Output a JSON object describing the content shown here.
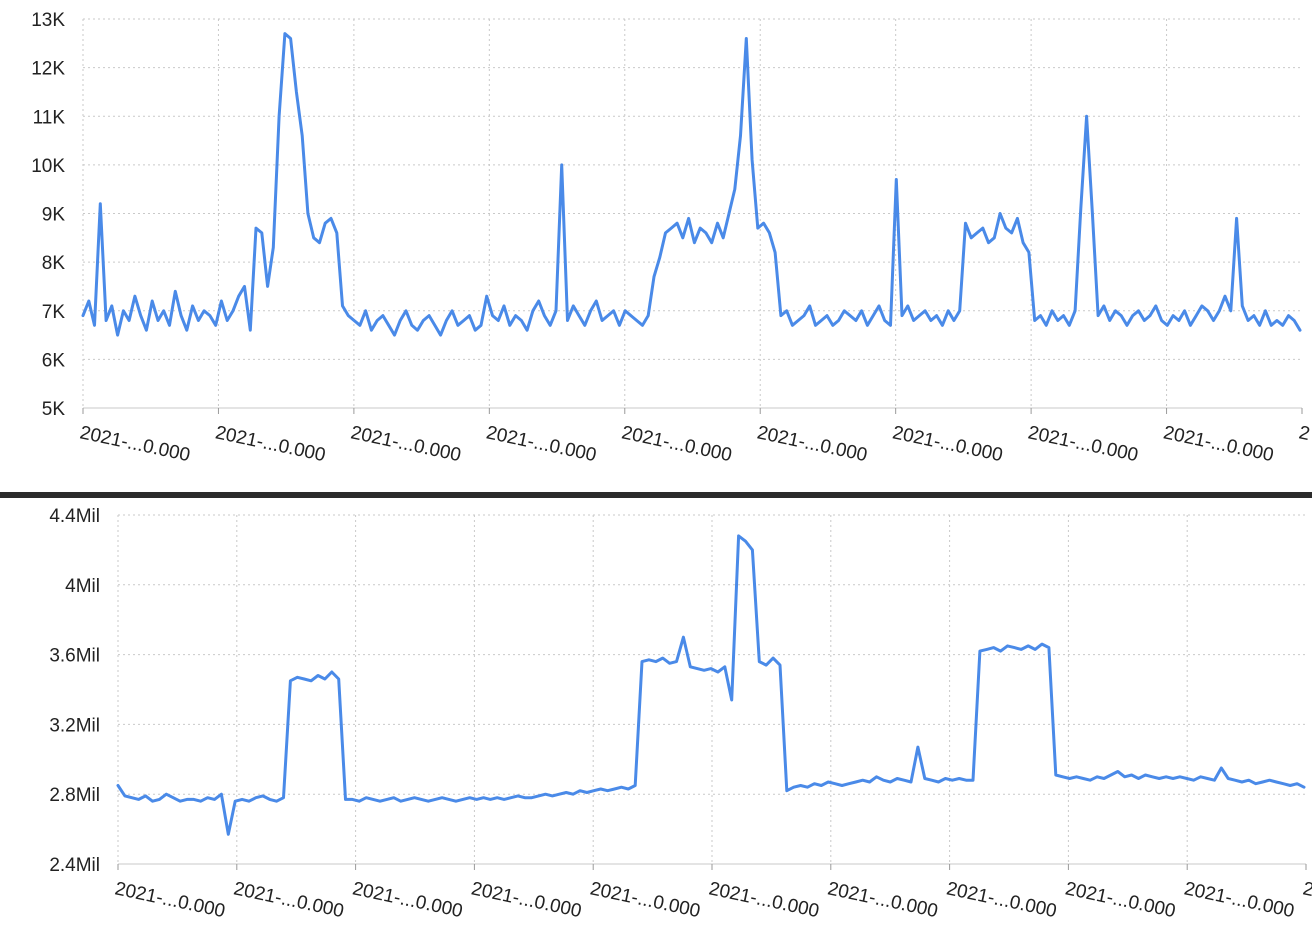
{
  "colors": {
    "series": "#4a8ae8",
    "grid": "#c9c9c9",
    "axis": "#9a9a9a",
    "text": "#222222"
  },
  "chart_data": [
    {
      "type": "line",
      "title": "",
      "xlabel": "",
      "ylabel": "",
      "ylim": [
        5000,
        13000
      ],
      "y_ticks": [
        5000,
        6000,
        7000,
        8000,
        9000,
        10000,
        11000,
        12000,
        13000
      ],
      "y_tick_labels": [
        "5K",
        "6K",
        "7K",
        "8K",
        "9K",
        "10K",
        "11K",
        "12K",
        "13K"
      ],
      "x_tick_labels": [
        "2021-...0.000",
        "2021-...0.000",
        "2021-...0.000",
        "2021-...0.000",
        "2021-...0.000",
        "2021-...0.000",
        "2021-...0.000",
        "2021-...0.000",
        "2021-...0.000",
        "2"
      ],
      "grid": true,
      "series": [
        {
          "values": [
            6900,
            7200,
            6700,
            9200,
            6800,
            7100,
            6500,
            7000,
            6800,
            7300,
            6900,
            6600,
            7200,
            6800,
            7000,
            6700,
            7400,
            6900,
            6600,
            7100,
            6800,
            7000,
            6900,
            6700,
            7200,
            6800,
            7000,
            7300,
            7500,
            6600,
            8700,
            8600,
            7500,
            8300,
            11000,
            12700,
            12600,
            11500,
            10600,
            9000,
            8500,
            8400,
            8800,
            8900,
            8600,
            7100,
            6900,
            6800,
            6700,
            7000,
            6600,
            6800,
            6900,
            6700,
            6500,
            6800,
            7000,
            6700,
            6600,
            6800,
            6900,
            6700,
            6500,
            6800,
            7000,
            6700,
            6800,
            6900,
            6600,
            6700,
            7300,
            6900,
            6800,
            7100,
            6700,
            6900,
            6800,
            6600,
            7000,
            7200,
            6900,
            6700,
            7000,
            10000,
            6800,
            7100,
            6900,
            6700,
            7000,
            7200,
            6800,
            6900,
            7000,
            6700,
            7000,
            6900,
            6800,
            6700,
            6900,
            7700,
            8100,
            8600,
            8700,
            8800,
            8500,
            8900,
            8400,
            8700,
            8600,
            8400,
            8800,
            8500,
            9000,
            9500,
            10600,
            12600,
            10100,
            8700,
            8800,
            8600,
            8200,
            6900,
            7000,
            6700,
            6800,
            6900,
            7100,
            6700,
            6800,
            6900,
            6700,
            6800,
            7000,
            6900,
            6800,
            7000,
            6700,
            6900,
            7100,
            6800,
            6700,
            9700,
            6900,
            7100,
            6800,
            6900,
            7000,
            6800,
            6900,
            6700,
            7000,
            6800,
            7000,
            8800,
            8500,
            8600,
            8700,
            8400,
            8500,
            9000,
            8700,
            8600,
            8900,
            8400,
            8200,
            6800,
            6900,
            6700,
            7000,
            6800,
            6900,
            6700,
            7000,
            9100,
            11000,
            9000,
            6900,
            7100,
            6800,
            7000,
            6900,
            6700,
            6900,
            7000,
            6800,
            6900,
            7100,
            6800,
            6700,
            6900,
            6800,
            7000,
            6700,
            6900,
            7100,
            7000,
            6800,
            7000,
            7300,
            7000,
            8900,
            7100,
            6800,
            6900,
            6700,
            7000,
            6700,
            6800,
            6700,
            6900,
            6800,
            6600
          ]
        }
      ]
    },
    {
      "type": "line",
      "title": "",
      "xlabel": "",
      "ylabel": "",
      "ylim": [
        2400000,
        4400000
      ],
      "y_ticks": [
        2400000,
        2800000,
        3200000,
        3600000,
        4000000,
        4400000
      ],
      "y_tick_labels": [
        "2.4Mil",
        "2.8Mil",
        "3.2Mil",
        "3.6Mil",
        "4Mil",
        "4.4Mil"
      ],
      "x_tick_labels": [
        "2021-...0.000",
        "2021-...0.000",
        "2021-...0.000",
        "2021-...0.000",
        "2021-...0.000",
        "2021-...0.000",
        "2021-...0.000",
        "2021-...0.000",
        "2021-...0.000",
        "2021-...0.000",
        "2"
      ],
      "grid": true,
      "series": [
        {
          "values": [
            2850000,
            2790000,
            2780000,
            2770000,
            2790000,
            2760000,
            2770000,
            2800000,
            2780000,
            2760000,
            2770000,
            2770000,
            2760000,
            2780000,
            2770000,
            2800000,
            2570000,
            2760000,
            2770000,
            2760000,
            2780000,
            2790000,
            2770000,
            2760000,
            2780000,
            3450000,
            3470000,
            3460000,
            3450000,
            3480000,
            3460000,
            3500000,
            3460000,
            2770000,
            2770000,
            2760000,
            2780000,
            2770000,
            2760000,
            2770000,
            2780000,
            2760000,
            2770000,
            2780000,
            2770000,
            2760000,
            2770000,
            2780000,
            2770000,
            2760000,
            2770000,
            2780000,
            2770000,
            2780000,
            2770000,
            2780000,
            2770000,
            2780000,
            2790000,
            2780000,
            2780000,
            2790000,
            2800000,
            2790000,
            2800000,
            2810000,
            2800000,
            2820000,
            2810000,
            2820000,
            2830000,
            2820000,
            2830000,
            2840000,
            2830000,
            2850000,
            3560000,
            3570000,
            3560000,
            3580000,
            3550000,
            3560000,
            3700000,
            3530000,
            3520000,
            3510000,
            3520000,
            3500000,
            3530000,
            3340000,
            4280000,
            4250000,
            4200000,
            3560000,
            3540000,
            3580000,
            3540000,
            2820000,
            2840000,
            2850000,
            2840000,
            2860000,
            2850000,
            2870000,
            2860000,
            2850000,
            2860000,
            2870000,
            2880000,
            2870000,
            2900000,
            2880000,
            2870000,
            2890000,
            2880000,
            2870000,
            3070000,
            2890000,
            2880000,
            2870000,
            2890000,
            2880000,
            2890000,
            2880000,
            2880000,
            3620000,
            3630000,
            3640000,
            3620000,
            3650000,
            3640000,
            3630000,
            3650000,
            3630000,
            3660000,
            3640000,
            2910000,
            2900000,
            2890000,
            2900000,
            2890000,
            2880000,
            2900000,
            2890000,
            2910000,
            2930000,
            2900000,
            2910000,
            2890000,
            2910000,
            2900000,
            2890000,
            2900000,
            2890000,
            2900000,
            2890000,
            2880000,
            2900000,
            2890000,
            2880000,
            2950000,
            2890000,
            2880000,
            2870000,
            2880000,
            2860000,
            2870000,
            2880000,
            2870000,
            2860000,
            2850000,
            2860000,
            2840000
          ]
        }
      ]
    }
  ]
}
